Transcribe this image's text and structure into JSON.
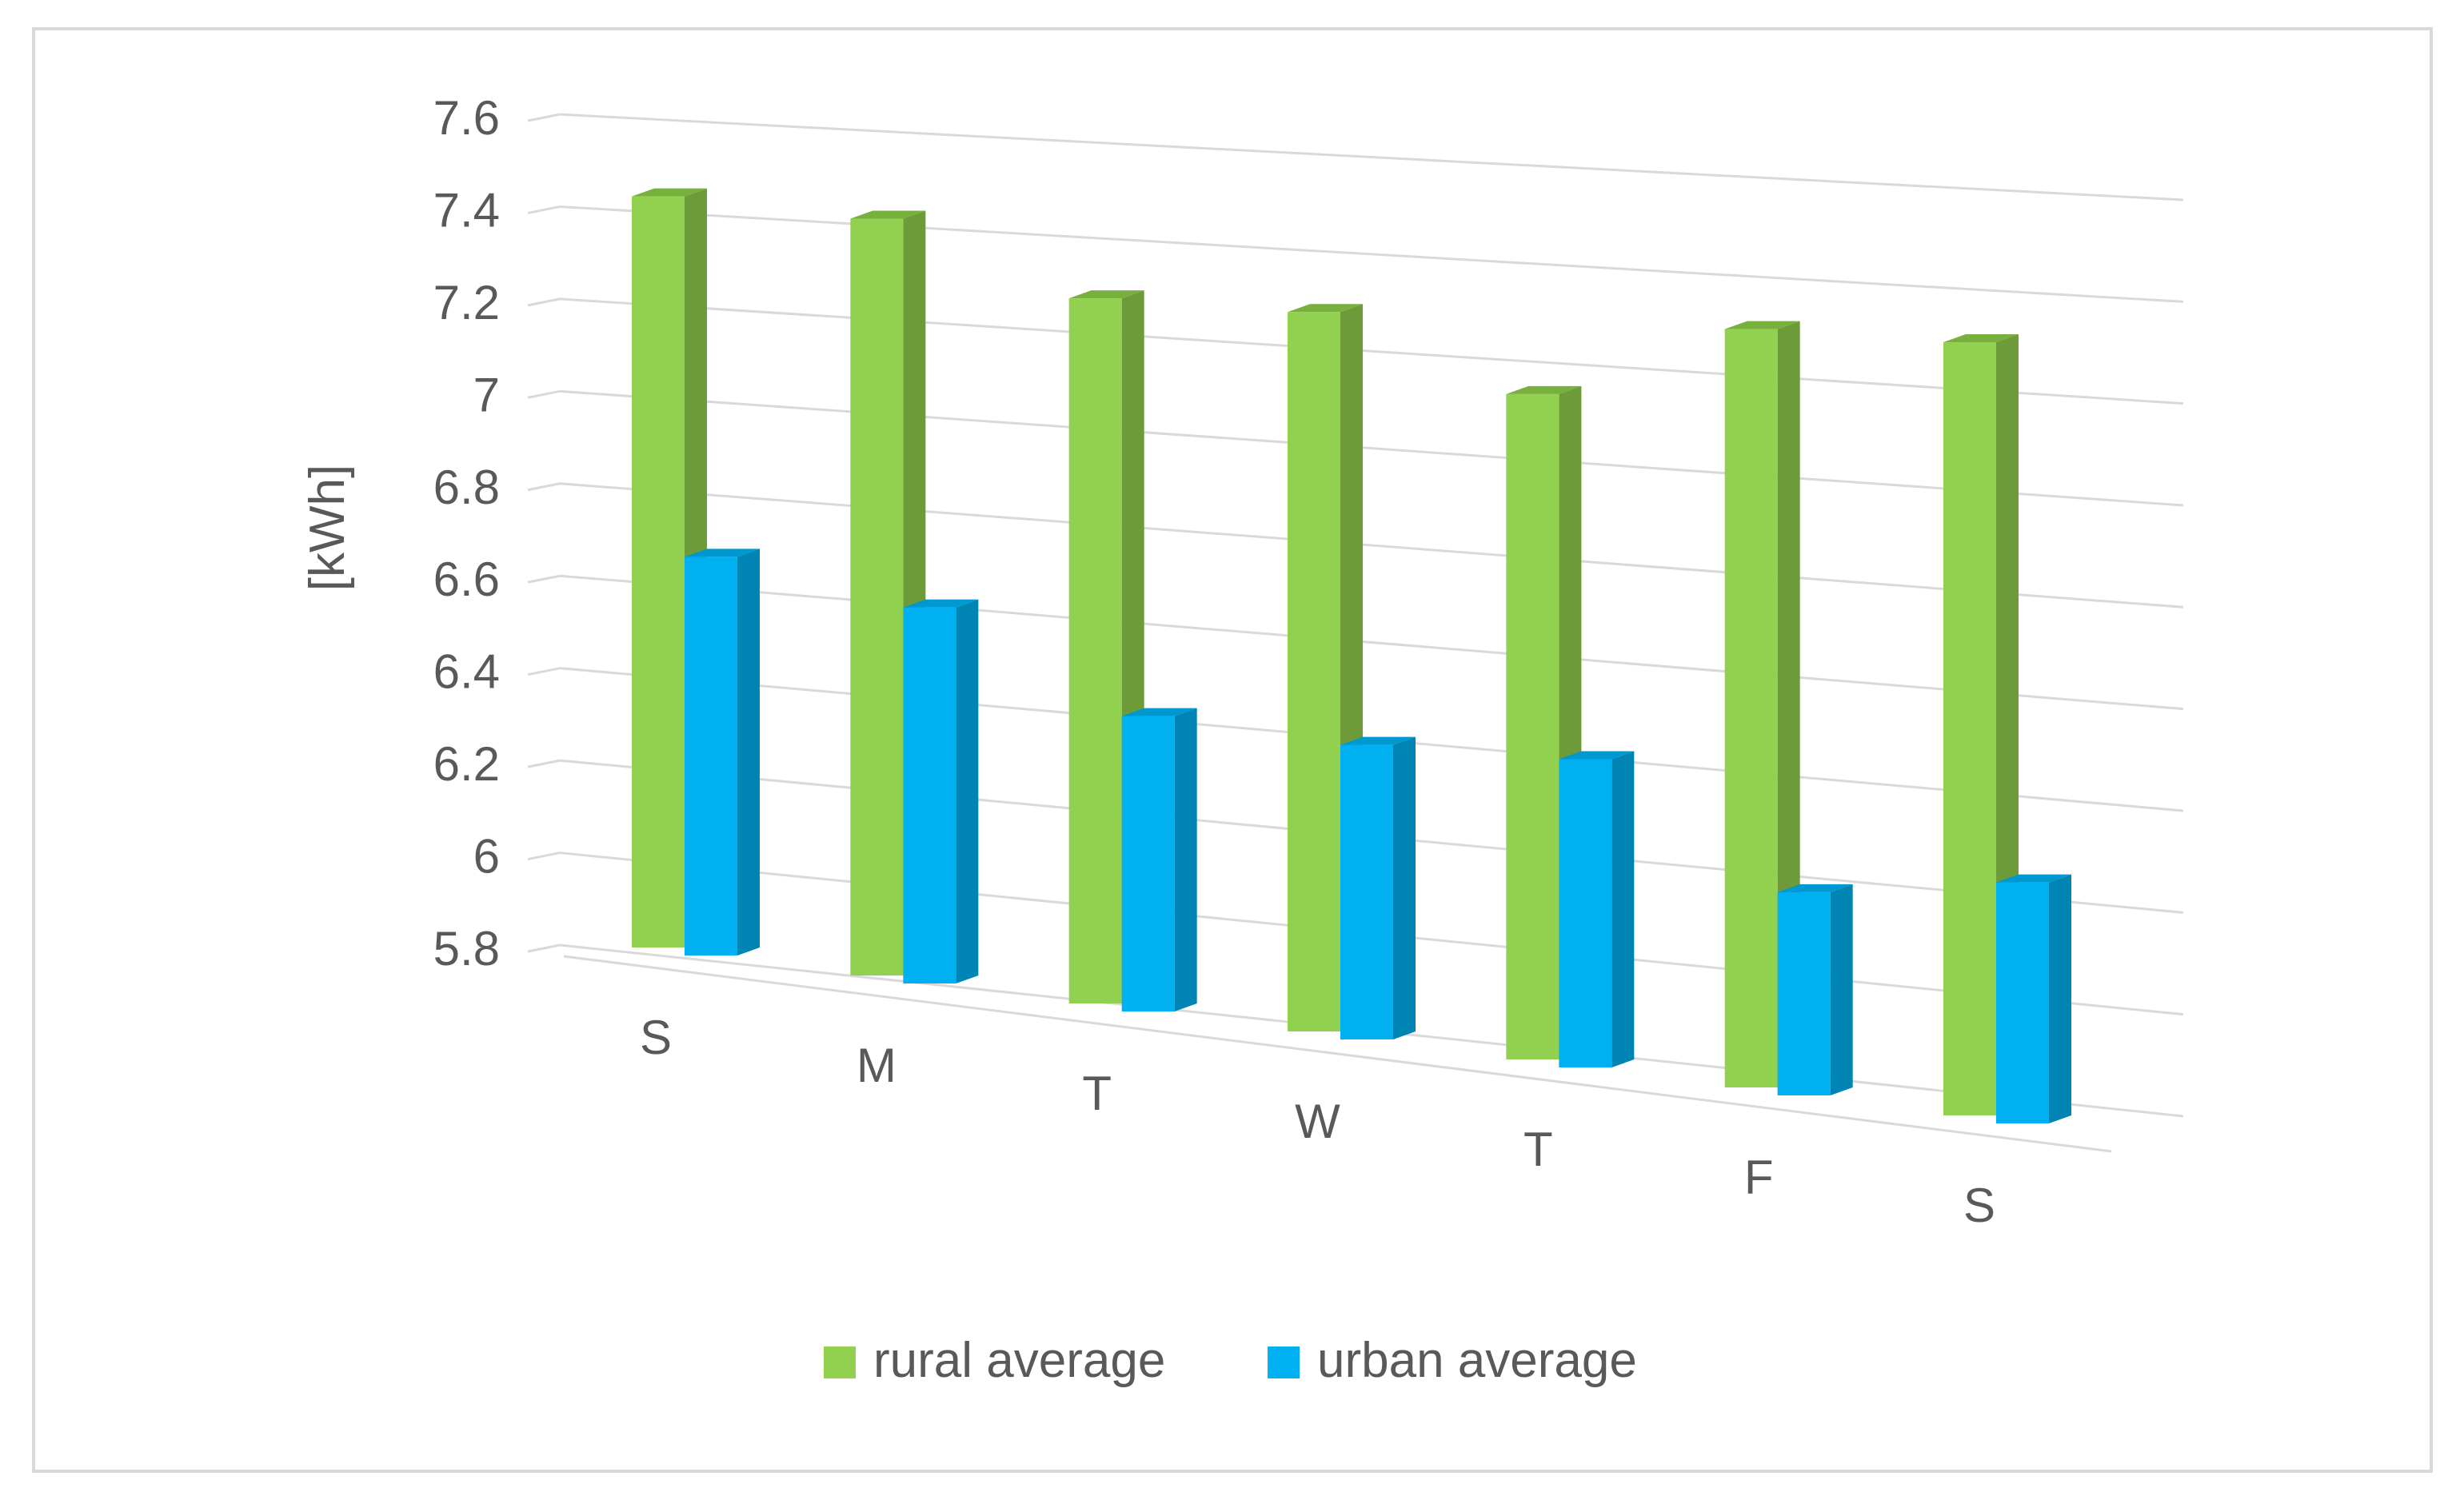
{
  "chart_data": {
    "type": "bar",
    "style": "3d-clustered-column",
    "title": "",
    "xlabel": "",
    "ylabel": "[kWh]",
    "ylim": [
      5.8,
      7.6
    ],
    "yticks": [
      "7.6",
      "7.4",
      "7.2",
      "7",
      "6.8",
      "6.6",
      "6.4",
      "6.2",
      "6",
      "5.8"
    ],
    "ytick_values": [
      7.6,
      7.4,
      7.2,
      7.0,
      6.8,
      6.6,
      6.4,
      6.2,
      6.0,
      5.8
    ],
    "grid": true,
    "legend_position": "bottom",
    "categories": [
      "S",
      "M",
      "T",
      "W",
      "T",
      "F",
      "S"
    ],
    "series": [
      {
        "name": "rural average",
        "color": "#92D050",
        "side_color": "#6E9B3A",
        "top_color": "#78B03E",
        "values": [
          7.42,
          7.41,
          7.28,
          7.29,
          7.16,
          7.33,
          7.34
        ]
      },
      {
        "name": "urban average",
        "color": "#00B0F0",
        "side_color": "#0084B4",
        "top_color": "#0098D0",
        "values": [
          6.66,
          6.6,
          6.42,
          6.41,
          6.43,
          6.21,
          6.28
        ]
      }
    ]
  }
}
